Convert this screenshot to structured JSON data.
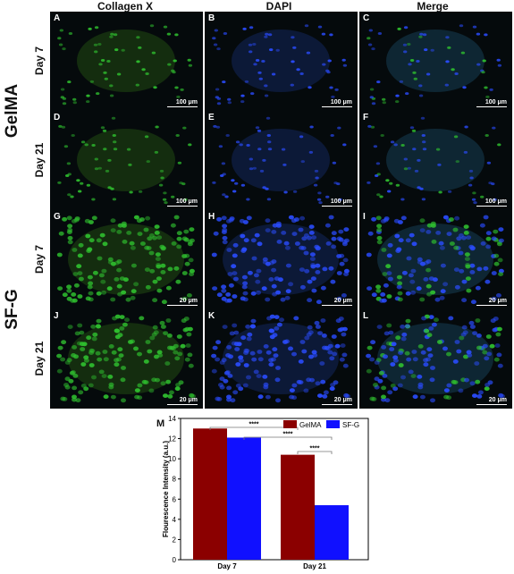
{
  "figure": {
    "column_headers": [
      "Collagen X",
      "DAPI",
      "Merge"
    ],
    "groups": [
      "GelMA",
      "SF-G"
    ],
    "row_labels": [
      "Day 7",
      "Day 21",
      "Day 7",
      "Day 21"
    ],
    "panels": [
      {
        "letter": "A",
        "scale": "100 μm",
        "stain": "green"
      },
      {
        "letter": "B",
        "scale": "100 μm",
        "stain": "blue"
      },
      {
        "letter": "C",
        "scale": "100 μm",
        "stain": "merge"
      },
      {
        "letter": "D",
        "scale": "100 μm",
        "stain": "green"
      },
      {
        "letter": "E",
        "scale": "100 μm",
        "stain": "blue"
      },
      {
        "letter": "F",
        "scale": "100 μm",
        "stain": "merge"
      },
      {
        "letter": "G",
        "scale": "20 μm",
        "stain": "green"
      },
      {
        "letter": "H",
        "scale": "20 μm",
        "stain": "blue"
      },
      {
        "letter": "I",
        "scale": "20 μm",
        "stain": "merge"
      },
      {
        "letter": "J",
        "scale": "20 μm",
        "stain": "green"
      },
      {
        "letter": "K",
        "scale": "20 μm",
        "stain": "blue"
      },
      {
        "letter": "L",
        "scale": "20 μm",
        "stain": "merge"
      }
    ],
    "colors": {
      "green": "#2fbf2f",
      "blue": "#2a4cff",
      "gelma": "#8b0000",
      "sfg": "#1010ff"
    },
    "m_letter": "M"
  },
  "chart_data": {
    "type": "bar",
    "categories": [
      "Day 7",
      "Day 21"
    ],
    "series": [
      {
        "name": "GelMA",
        "values": [
          13.0,
          10.4
        ],
        "color": "#8b0000"
      },
      {
        "name": "SF-G",
        "values": [
          12.1,
          5.4
        ],
        "color": "#1010ff"
      }
    ],
    "xlabel": "",
    "ylabel": "Flourescence Intensity (a.u.)",
    "ylim": [
      0,
      14
    ],
    "yticks": [
      0,
      2,
      4,
      6,
      8,
      10,
      12,
      14
    ],
    "legend": "top-right",
    "significance": [
      "****",
      "****",
      "****"
    ]
  }
}
